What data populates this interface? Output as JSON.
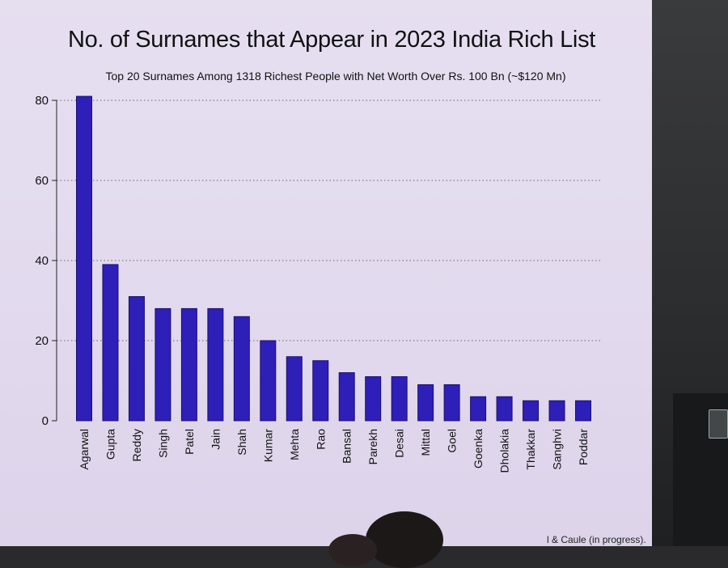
{
  "chart_data": {
    "type": "bar",
    "title": "No. of Surnames that Appear in 2023 India Rich List",
    "subtitle": "Top 20 Surnames Among 1318 Richest People with Net Worth Over Rs. 100 Bn (~$120 Mn)",
    "xlabel": "",
    "ylabel": "",
    "categories": [
      "Agarwal",
      "Gupta",
      "Reddy",
      "Singh",
      "Patel",
      "Jain",
      "Shah",
      "Kumar",
      "Mehta",
      "Rao",
      "Bansal",
      "Parekh",
      "Desai",
      "Mittal",
      "Goel",
      "Goenka",
      "Dholakia",
      "Thakkar",
      "Sanghvi",
      "Poddar"
    ],
    "values": [
      81,
      39,
      31,
      28,
      28,
      28,
      26,
      20,
      16,
      15,
      12,
      11,
      11,
      9,
      9,
      6,
      6,
      5,
      5,
      5
    ],
    "ylim": [
      0,
      80
    ],
    "yticks": [
      0,
      20,
      40,
      60,
      80
    ],
    "grid": "horizontal dotted",
    "colors": {
      "bar": "#2e1fb8",
      "bar_stroke": "#1a1070",
      "grid": "#666666"
    }
  },
  "footer": {
    "note": "l & Caule (in progress)."
  }
}
